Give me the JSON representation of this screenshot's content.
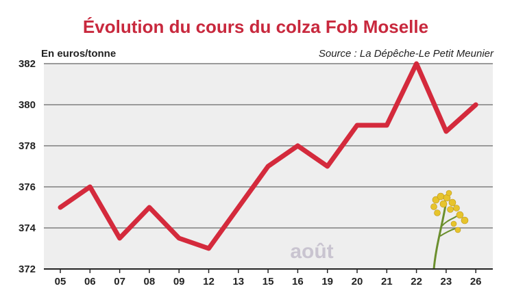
{
  "chart_data": {
    "type": "line",
    "title": "Évolution du cours du colza Fob Moselle",
    "unit_label": "En euros/tonne",
    "source": "Source : La Dépêche-Le Petit Meunier",
    "month_label": "août",
    "categories": [
      "05",
      "06",
      "07",
      "08",
      "09",
      "12",
      "13",
      "15",
      "16",
      "19",
      "20",
      "21",
      "22",
      "23",
      "26"
    ],
    "values": [
      375,
      376,
      373.5,
      375,
      373.5,
      373,
      375,
      377,
      378,
      377,
      379,
      379,
      382,
      378.7,
      380
    ],
    "ylim": [
      372,
      382
    ],
    "yticks": [
      372,
      374,
      376,
      378,
      380,
      382
    ],
    "grid": true,
    "colors": {
      "title": "#c8283d",
      "line": "#d42a3c",
      "plot_bg": "#eeeeee",
      "grid": "#9a9a9a",
      "axis": "#222222",
      "month": "#c9c4d0"
    },
    "icon": "rapeseed-flower-icon"
  }
}
